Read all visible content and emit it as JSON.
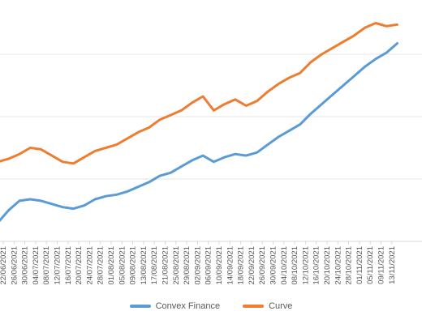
{
  "chart_data": {
    "type": "line",
    "x_tick_labels": [
      "22/06/2021",
      "26/06/2021",
      "30/06/2021",
      "04/07/2021",
      "08/07/2021",
      "12/07/2021",
      "16/07/2021",
      "20/07/2021",
      "24/07/2021",
      "28/07/2021",
      "01/08/2021",
      "05/08/2021",
      "09/08/2021",
      "13/08/2021",
      "17/08/2021",
      "21/08/2021",
      "25/08/2021",
      "29/08/2021",
      "02/09/2021",
      "06/09/2021",
      "10/09/2021",
      "14/09/2021",
      "18/09/2021",
      "22/09/2021",
      "26/09/2021",
      "30/09/2021",
      "04/10/2021",
      "08/10/2021",
      "12/10/2021",
      "16/10/2021",
      "20/10/2021",
      "24/10/2021",
      "28/10/2021",
      "01/11/2021",
      "05/11/2021",
      "09/11/2021",
      "13/11/2021"
    ],
    "x": [
      "20/06/2021",
      "24/06/2021",
      "28/06/2021",
      "02/07/2021",
      "06/07/2021",
      "10/07/2021",
      "14/07/2021",
      "18/07/2021",
      "22/07/2021",
      "26/07/2021",
      "30/07/2021",
      "03/08/2021",
      "07/08/2021",
      "11/08/2021",
      "15/08/2021",
      "19/08/2021",
      "23/08/2021",
      "27/08/2021",
      "31/08/2021",
      "04/09/2021",
      "08/09/2021",
      "12/09/2021",
      "16/09/2021",
      "20/09/2021",
      "24/09/2021",
      "28/09/2021",
      "02/10/2021",
      "06/10/2021",
      "10/10/2021",
      "14/10/2021",
      "18/10/2021",
      "22/10/2021",
      "26/10/2021",
      "30/10/2021",
      "03/11/2021",
      "07/11/2021",
      "11/11/2021",
      "15/11/2021"
    ],
    "series": [
      {
        "name": "Convex Finance",
        "color": "#5b9bd5",
        "values": [
          0.6,
          1.0,
          1.3,
          1.35,
          1.3,
          1.2,
          1.1,
          1.05,
          1.15,
          1.35,
          1.45,
          1.5,
          1.6,
          1.75,
          1.9,
          2.1,
          2.2,
          2.4,
          2.6,
          2.75,
          2.55,
          2.7,
          2.8,
          2.75,
          2.85,
          3.1,
          3.35,
          3.55,
          3.75,
          4.1,
          4.4,
          4.7,
          5.0,
          5.3,
          5.6,
          5.85,
          6.05,
          6.35
        ]
      },
      {
        "name": "Curve",
        "color": "#ed7d31",
        "values": [
          2.55,
          2.65,
          2.8,
          3.0,
          2.95,
          2.75,
          2.55,
          2.5,
          2.7,
          2.9,
          3.0,
          3.1,
          3.3,
          3.5,
          3.65,
          3.9,
          4.05,
          4.2,
          4.45,
          4.65,
          4.2,
          4.4,
          4.55,
          4.35,
          4.5,
          4.8,
          5.05,
          5.25,
          5.4,
          5.75,
          6.0,
          6.2,
          6.4,
          6.6,
          6.85,
          7.0,
          6.9,
          6.95
        ]
      }
    ],
    "ylim": [
      0,
      8
    ],
    "grid": true,
    "legend_position": "bottom"
  }
}
